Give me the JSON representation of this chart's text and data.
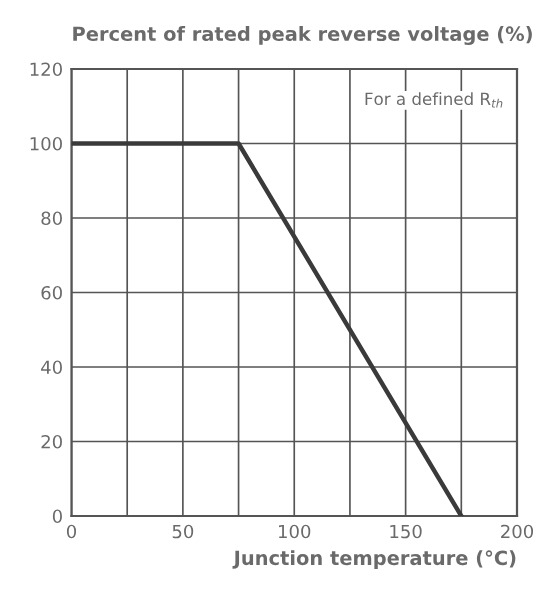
{
  "chart_data": {
    "type": "line",
    "title": "Percent of rated peak reverse voltage (%)",
    "xlabel": "Junction temperature (°C)",
    "annotations": [
      "For a defined R$_{th}$"
    ],
    "x": [
      0,
      75,
      175
    ],
    "series": [
      {
        "color": "#3a3a3a",
        "values": [
          100,
          100,
          0
        ]
      }
    ],
    "xlim": [
      0,
      200
    ],
    "ylim": [
      0,
      120
    ],
    "xticks": [
      0,
      {
        "value": 25,
        "label": null
      },
      50,
      {
        "value": 75,
        "label": null
      },
      100,
      {
        "value": 125,
        "label": null
      },
      150,
      {
        "value": 175,
        "label": null
      },
      200
    ],
    "yticks": [
      0,
      20,
      40,
      60,
      80,
      100,
      120
    ],
    "grid": true,
    "marker": "none",
    "line_style": "solid"
  }
}
